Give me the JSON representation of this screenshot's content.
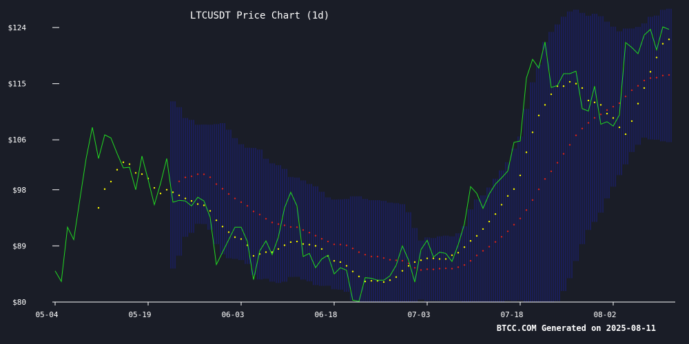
{
  "chart_data": {
    "type": "line",
    "title": "LTCUSDT Price Chart (1d)",
    "footer": "BTCC.COM Generated on 2025-08-11",
    "x_start": "2025-05-04",
    "x_ticks": [
      "05-04",
      "05-19",
      "06-03",
      "06-18",
      "07-03",
      "07-18",
      "08-02"
    ],
    "y_ticks": [
      "$80",
      "$89",
      "$98",
      "$106",
      "$115",
      "$124"
    ],
    "ylim": [
      80,
      124
    ],
    "price": [
      85.0,
      83.3,
      92.0,
      90.0,
      96.5,
      103.0,
      108.0,
      103.0,
      106.8,
      106.3,
      103.8,
      101.5,
      101.6,
      98.0,
      103.4,
      99.6,
      95.6,
      99.0,
      103.0,
      96.0,
      96.3,
      96.2,
      95.4,
      96.8,
      96.2,
      93.6,
      86.0,
      88.0,
      90.0,
      92.0,
      92.0,
      89.7,
      83.6,
      88.2,
      89.8,
      87.6,
      90.4,
      95.1,
      97.6,
      95.4,
      87.3,
      87.8,
      85.5,
      86.9,
      87.5,
      84.5,
      85.5,
      85.1,
      80.3,
      80.1,
      83.9,
      83.8,
      83.5,
      83.5,
      84.2,
      85.9,
      89.0,
      86.7,
      83.2,
      88.4,
      89.9,
      87.2,
      88.0,
      87.8,
      86.5,
      89.2,
      92.5,
      98.5,
      97.4,
      95.0,
      97.3,
      98.9,
      99.9,
      101.0,
      105.6,
      105.8,
      115.9,
      118.9,
      117.5,
      121.7,
      114.4,
      114.7,
      116.6,
      116.6,
      117.0,
      111.0,
      110.6,
      114.6,
      108.5,
      108.9,
      108.2,
      110.0,
      121.6,
      120.8,
      119.8,
      122.8,
      123.7,
      120.4,
      124.1,
      123.7
    ],
    "psar": [
      null,
      null,
      null,
      null,
      null,
      null,
      null,
      95.1,
      98.1,
      99.3,
      101.2,
      102.4,
      102.1,
      100.7,
      100.5,
      99.8,
      98.3,
      97.4,
      98.0,
      97.6,
      97.1,
      96.6,
      96.2,
      95.7,
      95.5,
      94.6,
      93.1,
      92.1,
      91.2,
      90.4,
      90.1,
      89.1,
      87.4,
      87.7,
      88.0,
      88.0,
      88.5,
      89.1,
      89.6,
      89.7,
      89.3,
      89.2,
      89.0,
      88.5,
      87.4,
      86.6,
      86.4,
      85.8,
      84.9,
      84.1,
      83.3,
      83.4,
      83.4,
      83.2,
      83.5,
      84.0,
      85.0,
      85.8,
      86.4,
      86.7,
      87.0,
      87.0,
      86.9,
      86.9,
      87.5,
      87.9,
      88.8,
      89.8,
      90.6,
      91.7,
      92.9,
      94.1,
      95.6,
      97.0,
      98.1,
      100.3,
      104.0,
      107.2,
      109.9,
      111.6,
      113.3,
      114.6,
      114.6,
      115.3,
      115.0,
      114.3,
      112.3,
      112.0,
      111.6,
      110.2,
      109.5,
      108.0,
      106.9,
      109.0,
      111.8,
      114.3,
      116.9,
      119.2,
      121.4,
      122.1
    ],
    "ma": [
      null,
      null,
      null,
      null,
      null,
      null,
      null,
      null,
      null,
      null,
      null,
      null,
      null,
      null,
      null,
      null,
      null,
      null,
      null,
      null,
      null,
      null,
      null,
      null,
      null,
      null,
      null,
      null,
      null,
      null,
      null,
      null,
      null,
      null,
      null,
      null,
      null,
      null,
      null,
      null,
      null,
      null,
      null,
      null,
      null,
      null,
      null,
      null,
      null,
      null,
      null,
      null,
      null,
      null,
      null,
      null,
      null,
      null,
      null,
      null,
      null,
      null,
      null,
      null,
      null,
      null,
      null,
      null,
      null,
      null,
      null,
      null,
      null,
      null,
      null,
      null,
      null,
      null,
      null,
      null,
      null,
      null,
      null,
      null,
      null,
      null,
      null,
      null,
      null,
      null,
      null,
      null,
      null,
      null,
      null,
      null,
      null,
      null,
      null,
      null
    ],
    "colors": {
      "background": "#1a1d27",
      "price_line": "#22dd22",
      "psar": "#ffff00",
      "moving_average": "#dd2222",
      "bollinger_band": "#1c1f8f",
      "axis": "#ffffff"
    }
  }
}
